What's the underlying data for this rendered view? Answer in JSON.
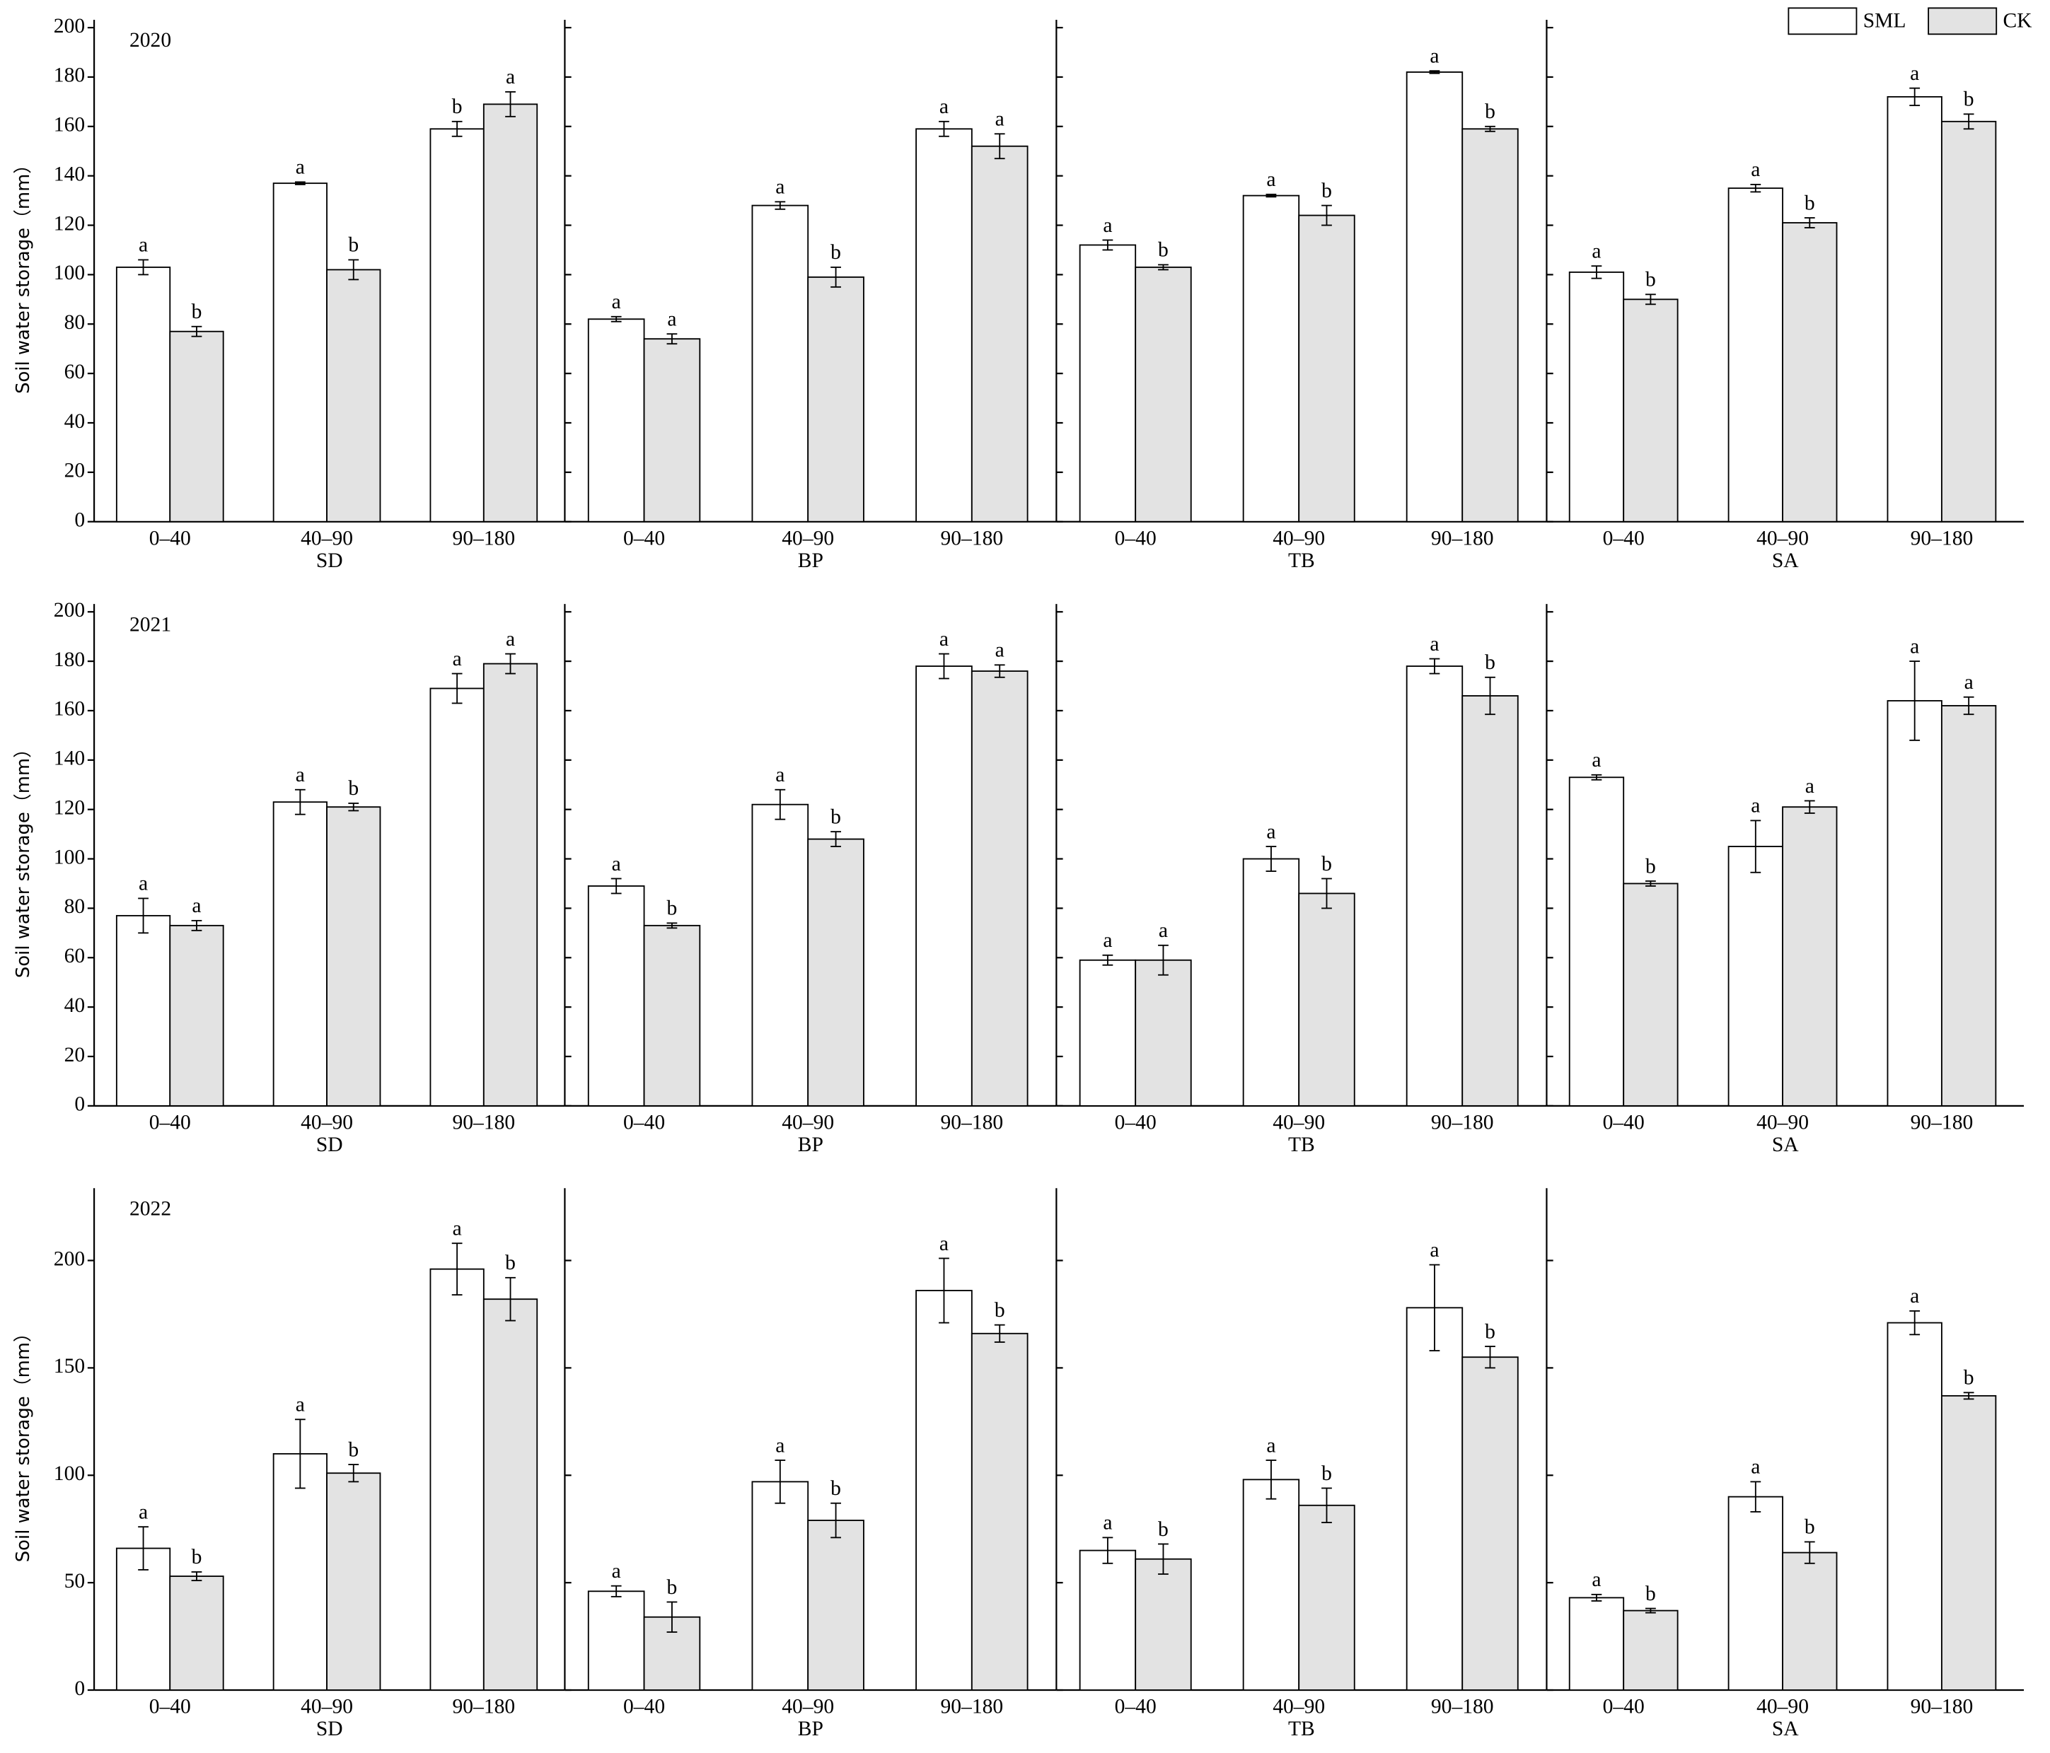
{
  "chart_data": [
    {
      "type": "bar",
      "title": "2020",
      "ylabel": "Soil water storage（mm）",
      "xlabel": "SD",
      "categories": [
        "0–40",
        "40–90",
        "90–180"
      ],
      "ylim": [
        0,
        200
      ],
      "yticks": [
        0,
        20,
        40,
        60,
        80,
        100,
        120,
        140,
        160,
        180,
        200
      ],
      "series": [
        {
          "color": "#ffffff",
          "values": [
            103,
            137,
            159
          ],
          "errors": [
            3,
            0.5,
            3
          ],
          "letters": [
            "a",
            "a",
            "b"
          ]
        },
        {
          "color": "#e3e3e3",
          "values": [
            77,
            102,
            169
          ],
          "errors": [
            2,
            4,
            5
          ],
          "letters": [
            "b",
            "b",
            "a"
          ]
        }
      ]
    },
    {
      "type": "bar",
      "xlabel": "BP",
      "categories": [
        "0–40",
        "40–90",
        "90–180"
      ],
      "ylim": [
        0,
        200
      ],
      "yticks": [
        0,
        20,
        40,
        60,
        80,
        100,
        120,
        140,
        160,
        180,
        200
      ],
      "series": [
        {
          "color": "#ffffff",
          "values": [
            82,
            128,
            159
          ],
          "errors": [
            1,
            1.5,
            3
          ],
          "letters": [
            "a",
            "a",
            "a"
          ]
        },
        {
          "color": "#e3e3e3",
          "values": [
            74,
            99,
            152
          ],
          "errors": [
            2,
            4,
            5
          ],
          "letters": [
            "a",
            "b",
            "a"
          ]
        }
      ]
    },
    {
      "type": "bar",
      "xlabel": "TB",
      "categories": [
        "0–40",
        "40–90",
        "90–180"
      ],
      "ylim": [
        0,
        200
      ],
      "yticks": [
        0,
        20,
        40,
        60,
        80,
        100,
        120,
        140,
        160,
        180,
        200
      ],
      "series": [
        {
          "color": "#ffffff",
          "values": [
            112,
            132,
            182
          ],
          "errors": [
            2,
            0.5,
            0.5
          ],
          "letters": [
            "a",
            "a",
            "a"
          ]
        },
        {
          "color": "#e3e3e3",
          "values": [
            103,
            124,
            159
          ],
          "errors": [
            1,
            4,
            1
          ],
          "letters": [
            "b",
            "b",
            "b"
          ]
        }
      ]
    },
    {
      "type": "bar",
      "xlabel": "SA",
      "legend": "upper right",
      "categories": [
        "0–40",
        "40–90",
        "90–180"
      ],
      "ylim": [
        0,
        200
      ],
      "yticks": [
        0,
        20,
        40,
        60,
        80,
        100,
        120,
        140,
        160,
        180,
        200
      ],
      "series": [
        {
          "name": "SML",
          "color": "#ffffff",
          "values": [
            101,
            135,
            172
          ],
          "errors": [
            2.5,
            1.5,
            3.5
          ],
          "letters": [
            "a",
            "a",
            "a"
          ]
        },
        {
          "name": "CK",
          "color": "#e3e3e3",
          "values": [
            90,
            121,
            162
          ],
          "errors": [
            2,
            2,
            3
          ],
          "letters": [
            "b",
            "b",
            "b"
          ]
        }
      ]
    },
    {
      "type": "bar",
      "title": "2021",
      "ylabel": "Soil water storage（mm）",
      "xlabel": "SD",
      "categories": [
        "0–40",
        "40–90",
        "90–180"
      ],
      "ylim": [
        0,
        200
      ],
      "yticks": [
        0,
        20,
        40,
        60,
        80,
        100,
        120,
        140,
        160,
        180,
        200
      ],
      "series": [
        {
          "color": "#ffffff",
          "values": [
            77,
            123,
            169
          ],
          "errors": [
            7,
            5,
            6
          ],
          "letters": [
            "a",
            "a",
            "a"
          ]
        },
        {
          "color": "#e3e3e3",
          "values": [
            73,
            121,
            179
          ],
          "errors": [
            2,
            1.5,
            4
          ],
          "letters": [
            "a",
            "b",
            "a"
          ]
        }
      ]
    },
    {
      "type": "bar",
      "xlabel": "BP",
      "categories": [
        "0–40",
        "40–90",
        "90–180"
      ],
      "ylim": [
        0,
        200
      ],
      "yticks": [
        0,
        20,
        40,
        60,
        80,
        100,
        120,
        140,
        160,
        180,
        200
      ],
      "series": [
        {
          "color": "#ffffff",
          "values": [
            89,
            122,
            178
          ],
          "errors": [
            3,
            6,
            5
          ],
          "letters": [
            "a",
            "a",
            "a"
          ]
        },
        {
          "color": "#e3e3e3",
          "values": [
            73,
            108,
            176
          ],
          "errors": [
            1,
            3,
            2.5
          ],
          "letters": [
            "b",
            "b",
            "a"
          ]
        }
      ]
    },
    {
      "type": "bar",
      "xlabel": "TB",
      "categories": [
        "0–40",
        "40–90",
        "90–180"
      ],
      "ylim": [
        0,
        200
      ],
      "yticks": [
        0,
        20,
        40,
        60,
        80,
        100,
        120,
        140,
        160,
        180,
        200
      ],
      "series": [
        {
          "color": "#ffffff",
          "values": [
            59,
            100,
            178
          ],
          "errors": [
            2,
            5,
            3
          ],
          "letters": [
            "a",
            "a",
            "a"
          ]
        },
        {
          "color": "#e3e3e3",
          "values": [
            59,
            86,
            166
          ],
          "errors": [
            6,
            6,
            7.5
          ],
          "letters": [
            "a",
            "b",
            "b"
          ]
        }
      ]
    },
    {
      "type": "bar",
      "xlabel": "SA",
      "categories": [
        "0–40",
        "40–90",
        "90–180"
      ],
      "ylim": [
        0,
        200
      ],
      "yticks": [
        0,
        20,
        40,
        60,
        80,
        100,
        120,
        140,
        160,
        180,
        200
      ],
      "series": [
        {
          "color": "#ffffff",
          "values": [
            133,
            105,
            164
          ],
          "errors": [
            1,
            10.5,
            16
          ],
          "letters": [
            "a",
            "a",
            "a"
          ]
        },
        {
          "color": "#e3e3e3",
          "values": [
            90,
            121,
            162
          ],
          "errors": [
            1,
            2.5,
            3.5
          ],
          "letters": [
            "b",
            "a",
            "a"
          ]
        }
      ]
    },
    {
      "type": "bar",
      "title": "2022",
      "ylabel": "Soil water storage（mm）",
      "xlabel": "SD",
      "categories": [
        "0–40",
        "40–90",
        "90–180"
      ],
      "ylim": [
        0,
        230
      ],
      "yticks": [
        0,
        50,
        100,
        150,
        200
      ],
      "series": [
        {
          "color": "#ffffff",
          "values": [
            66,
            110,
            196
          ],
          "errors": [
            10,
            16,
            12
          ],
          "letters": [
            "a",
            "a",
            "a"
          ]
        },
        {
          "color": "#e3e3e3",
          "values": [
            53,
            101,
            182
          ],
          "errors": [
            2,
            4,
            10
          ],
          "letters": [
            "b",
            "b",
            "b"
          ]
        }
      ]
    },
    {
      "type": "bar",
      "xlabel": "BP",
      "categories": [
        "0–40",
        "40–90",
        "90–180"
      ],
      "ylim": [
        0,
        230
      ],
      "yticks": [
        0,
        50,
        100,
        150,
        200
      ],
      "series": [
        {
          "color": "#ffffff",
          "values": [
            46,
            97,
            186
          ],
          "errors": [
            2.5,
            10,
            15
          ],
          "letters": [
            "a",
            "a",
            "a"
          ]
        },
        {
          "color": "#e3e3e3",
          "values": [
            34,
            79,
            166
          ],
          "errors": [
            7,
            8,
            4
          ],
          "letters": [
            "b",
            "b",
            "b"
          ]
        }
      ]
    },
    {
      "type": "bar",
      "xlabel": "TB",
      "categories": [
        "0–40",
        "40–90",
        "90–180"
      ],
      "ylim": [
        0,
        230
      ],
      "yticks": [
        0,
        50,
        100,
        150,
        200
      ],
      "series": [
        {
          "color": "#ffffff",
          "values": [
            65,
            98,
            178
          ],
          "errors": [
            6,
            9,
            20
          ],
          "letters": [
            "a",
            "a",
            "a"
          ]
        },
        {
          "color": "#e3e3e3",
          "values": [
            61,
            86,
            155
          ],
          "errors": [
            7,
            8,
            5
          ],
          "letters": [
            "b",
            "b",
            "b"
          ]
        }
      ]
    },
    {
      "type": "bar",
      "xlabel": "SA",
      "categories": [
        "0–40",
        "40–90",
        "90–180"
      ],
      "ylim": [
        0,
        230
      ],
      "yticks": [
        0,
        50,
        100,
        150,
        200
      ],
      "series": [
        {
          "color": "#ffffff",
          "values": [
            43,
            90,
            171
          ],
          "errors": [
            1.5,
            7,
            5.5
          ],
          "letters": [
            "a",
            "a",
            "a"
          ]
        },
        {
          "color": "#e3e3e3",
          "values": [
            37,
            64,
            137
          ],
          "errors": [
            1,
            5,
            1.5
          ],
          "letters": [
            "b",
            "b",
            "b"
          ]
        }
      ]
    }
  ]
}
